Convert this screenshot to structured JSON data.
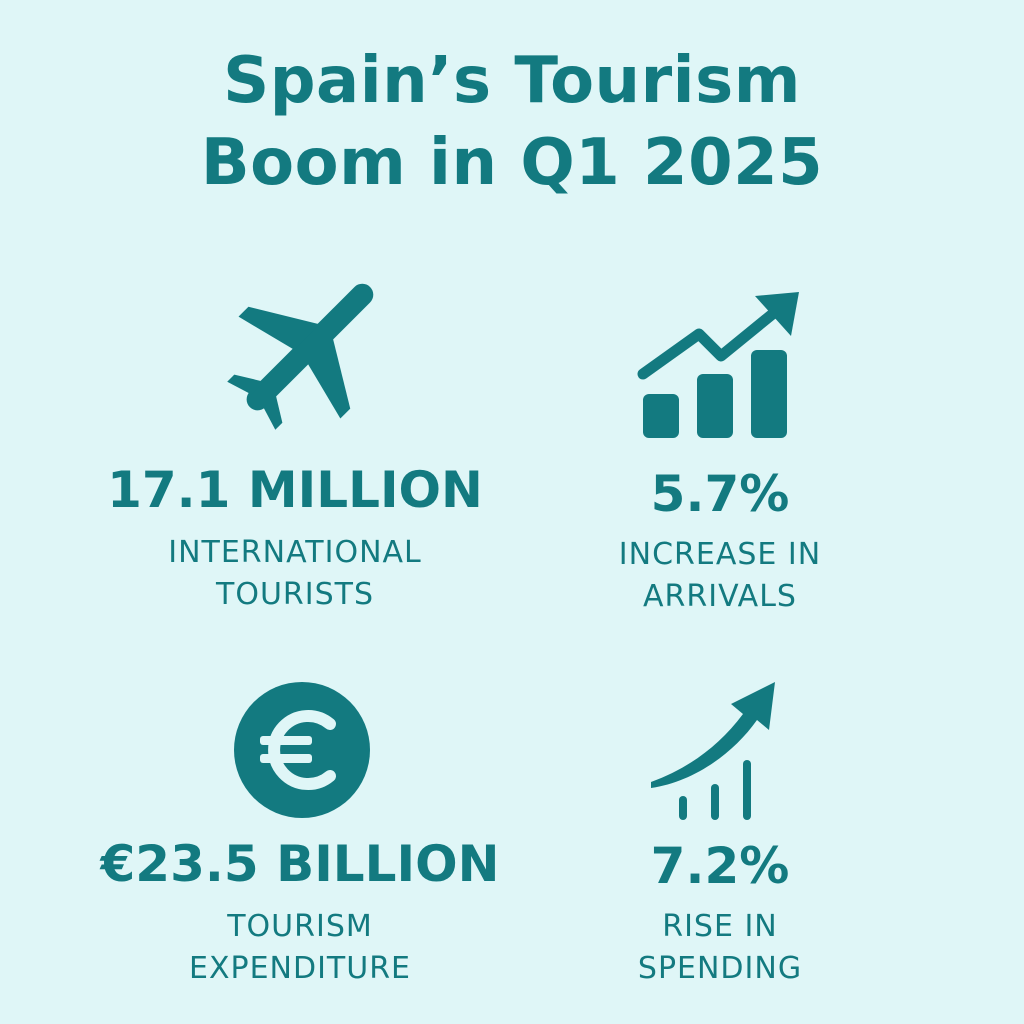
{
  "title": {
    "line1": "Spain’s Tourism",
    "line2": "Boom in Q1 2025"
  },
  "colors": {
    "background": "#dff6f7",
    "accent": "#137a80"
  },
  "stats": [
    {
      "icon": "airplane-icon",
      "value": "17.1 MILLION",
      "label_line1": "INTERNATIONAL",
      "label_line2": "TOURISTS"
    },
    {
      "icon": "bar-chart-trend-icon",
      "value": "5.7%",
      "label_line1": "INCREASE IN",
      "label_line2": "ARRIVALS"
    },
    {
      "icon": "euro-coin-icon",
      "value": "€23.5 BILLION",
      "label_line1": "TOURISM",
      "label_line2": "EXPENDITURE"
    },
    {
      "icon": "growth-arrow-icon",
      "value": "7.2%",
      "label_line1": "RISE IN",
      "label_line2": "SPENDING"
    }
  ]
}
